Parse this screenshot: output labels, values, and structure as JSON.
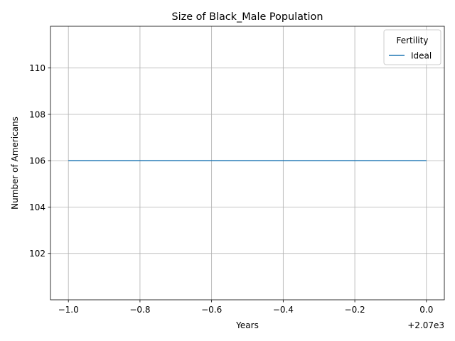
{
  "chart_data": {
    "type": "line",
    "title": "Size of Black_Male Population",
    "xlabel": "Years",
    "ylabel": "Number of Americans",
    "x_offset_label": "+2.07e3",
    "x_ticks": [
      "−1.0",
      "−0.8",
      "−0.6",
      "−0.4",
      "−0.2",
      "0.0"
    ],
    "y_ticks": [
      "102",
      "104",
      "106",
      "108",
      "110"
    ],
    "xlim": [
      2068.95,
      2070.05
    ],
    "ylim": [
      100.0,
      111.8
    ],
    "grid": true,
    "legend": {
      "title": "Fertility",
      "placement": "top-right"
    },
    "series": [
      {
        "name": "Ideal",
        "color": "#1f77b4",
        "x": [
          2069,
          2070
        ],
        "y": [
          106,
          106
        ]
      }
    ]
  }
}
